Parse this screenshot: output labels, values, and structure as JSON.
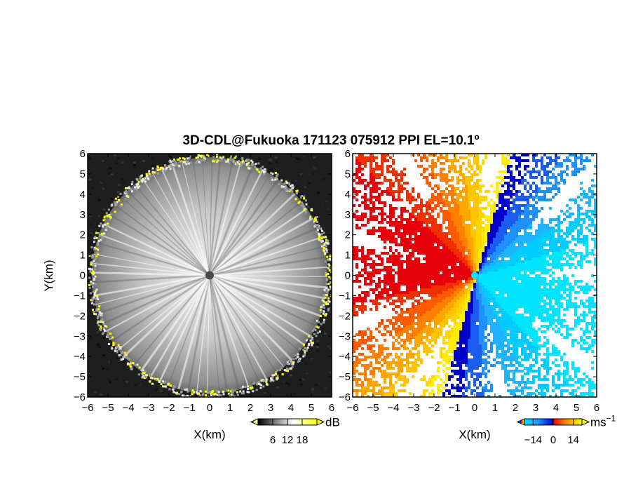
{
  "title": "3D-CDL@Fukuoka 171123 075912 PPI EL=10.1º",
  "chart_data": [
    {
      "type": "heatmap",
      "panel": "reflectivity",
      "xlabel": "X(km)",
      "ylabel": "Y(km)",
      "xlim": [
        -6,
        6
      ],
      "ylim": [
        -6,
        6
      ],
      "xticks": [
        -6,
        -5,
        -4,
        -3,
        -2,
        -1,
        0,
        1,
        2,
        3,
        4,
        5,
        6
      ],
      "yticks": [
        -6,
        -5,
        -4,
        -3,
        -2,
        -1,
        0,
        1,
        2,
        3,
        4,
        5,
        6
      ],
      "range_ring_km": 5.8,
      "colorbar": {
        "unit": "dB",
        "ticks": [
          6,
          12,
          18
        ],
        "range": [
          0,
          24
        ],
        "colors": [
          "#000000",
          "#ffffff",
          "#ffff00"
        ]
      }
    },
    {
      "type": "heatmap",
      "panel": "doppler-velocity",
      "xlabel": "X(km)",
      "ylabel": "",
      "xlim": [
        -6,
        6
      ],
      "ylim": [
        -6,
        6
      ],
      "xticks": [
        -6,
        -5,
        -4,
        -3,
        -2,
        -1,
        0,
        1,
        2,
        3,
        4,
        5,
        6
      ],
      "yticks": [
        -6,
        -5,
        -4,
        -3,
        -2,
        -1,
        0,
        1,
        2,
        3,
        4,
        5,
        6
      ],
      "colorbar": {
        "unit": "ms",
        "unit_exp": "−1",
        "ticks": [
          -14,
          0,
          14
        ],
        "range": [
          -20,
          20
        ],
        "colors": [
          "#00e5ff",
          "#1e90ff",
          "#0000cd",
          "#e8000b",
          "#ff7f00",
          "#ffd700",
          "#ffff00"
        ]
      }
    }
  ]
}
